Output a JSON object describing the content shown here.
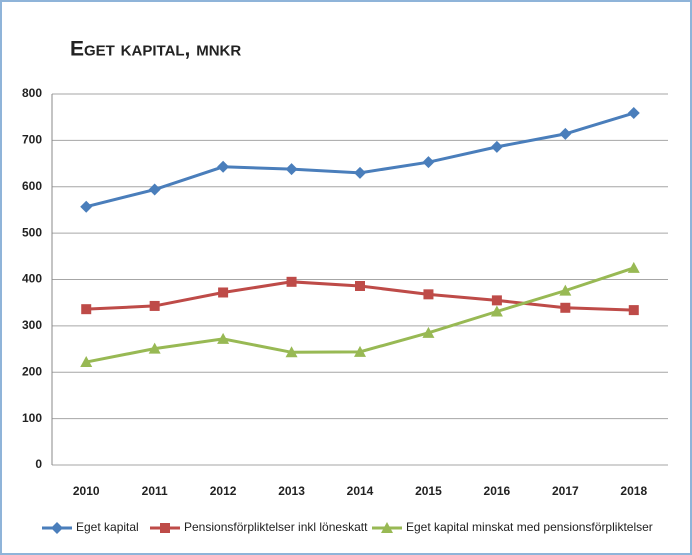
{
  "chart_data": {
    "type": "line",
    "title": "Eget kapital, mnkr",
    "categories": [
      "2010",
      "2011",
      "2012",
      "2013",
      "2014",
      "2015",
      "2016",
      "2017",
      "2018"
    ],
    "series": [
      {
        "name": "Eget kapital",
        "color": "#4a7ebb",
        "marker": "diamond",
        "values": [
          557,
          594,
          643,
          638,
          630,
          653,
          686,
          714,
          759
        ]
      },
      {
        "name": "Pensionsförpliktelser inkl löneskatt",
        "color": "#be4b48",
        "marker": "square",
        "values": [
          336,
          343,
          372,
          395,
          386,
          368,
          355,
          339,
          334
        ]
      },
      {
        "name": "Eget kapital minskat med pensionsförpliktelser",
        "color": "#98b954",
        "marker": "triangle",
        "values": [
          222,
          251,
          272,
          243,
          244,
          285,
          331,
          376,
          425
        ]
      }
    ],
    "ylim": [
      0,
      800
    ],
    "yticks": [
      0,
      100,
      200,
      300,
      400,
      500,
      600,
      700,
      800
    ],
    "grid": true,
    "legend": "bottom"
  }
}
